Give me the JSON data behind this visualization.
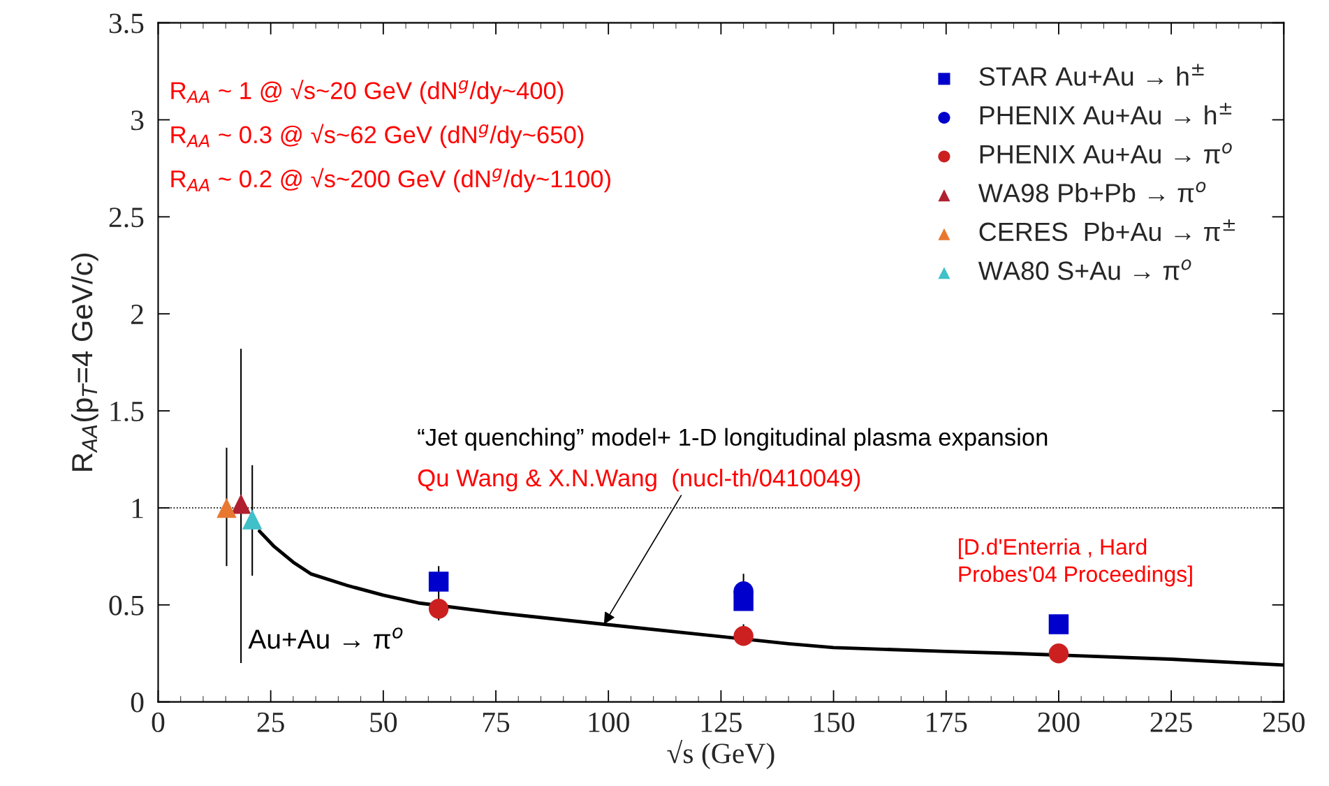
{
  "chart_data": {
    "type": "scatter",
    "xlabel": "√s (GeV)",
    "ylabel": "R$_{AA}$(p$_{T}$=4 GeV/c)",
    "xlim": [
      0,
      250
    ],
    "ylim": [
      0,
      3.5
    ],
    "xticks": [
      0,
      25,
      50,
      75,
      100,
      125,
      150,
      175,
      200,
      225,
      250
    ],
    "yticks": [
      0,
      0.5,
      1,
      1.5,
      2,
      2.5,
      3,
      3.5
    ],
    "grid": false,
    "legend": "top right",
    "series": [
      {
        "name": "STAR Au+Au → h$^{±}$",
        "marker": "square",
        "color": "#0000cc",
        "x": [
          62.3,
          130,
          200
        ],
        "values": [
          0.62,
          0.52,
          0.4
        ],
        "errors": [
          [
            0.55,
            0.7
          ],
          null,
          null
        ]
      },
      {
        "name": "PHENIX Au+Au → h$^{±}$",
        "marker": "circle",
        "color": "#0000cc",
        "x": [
          130
        ],
        "values": [
          0.57
        ],
        "errors": [
          [
            0.57,
            0.66
          ]
        ]
      },
      {
        "name": "PHENIX Au+Au → π$^{o}$",
        "marker": "circle",
        "color": "#cc2020",
        "x": [
          62.3,
          130,
          200
        ],
        "values": [
          0.48,
          0.34,
          0.25
        ],
        "errors": [
          [
            0.42,
            0.55
          ],
          [
            0.29,
            0.4
          ],
          null
        ]
      },
      {
        "name": "WA98 Pb+Pb → π$^{o}$",
        "marker": "triangle",
        "color": "#b02030",
        "x": [
          18.4
        ],
        "values": [
          1.02
        ],
        "errors": [
          [
            0.2,
            1.82
          ]
        ]
      },
      {
        "name": "CERES  Pb+Au → π$^{±}$",
        "marker": "triangle",
        "color": "#e87830",
        "x": [
          15.2
        ],
        "values": [
          1.0
        ],
        "errors": [
          [
            0.7,
            1.31
          ]
        ]
      },
      {
        "name": "WA80 S+Au → π$^{o}$",
        "marker": "triangle",
        "color": "#40c0c8",
        "x": [
          20.9
        ],
        "values": [
          0.94
        ],
        "errors": [
          [
            0.65,
            1.22
          ]
        ]
      },
      {
        "type": "line",
        "color": "#000000",
        "line_style": "solid",
        "marker": "none",
        "x": [
          22.5,
          25.8,
          30,
          33.9,
          42,
          50,
          57.8,
          75,
          99,
          140,
          150,
          175,
          190,
          225,
          250
        ],
        "values": [
          0.88,
          0.8,
          0.72,
          0.66,
          0.6,
          0.55,
          0.51,
          0.46,
          0.4,
          0.3,
          0.28,
          0.26,
          0.25,
          0.22,
          0.19
        ]
      }
    ],
    "ref_lines": [
      {
        "axis": "y",
        "value": 1,
        "line_style": "dotted",
        "color": "#000000"
      }
    ],
    "annotations": [
      "R$_{AA}$ ~ 1 @ √s~20 GeV (dN$^{g}$/dy~400)",
      "R$_{AA}$ ~ 0.3 @ √s~62 GeV (dN$^{g}$/dy~650)",
      "R$_{AA}$ ~ 0.2 @ √s~200 GeV (dN$^{g}$/dy~1100)",
      "“Jet quenching” model+ 1-D longitudinal plasma expansion",
      {
        "text": "Qu Wang & X.N.Wang  (nucl-th/0410049)",
        "x": 99,
        "y": 0.4
      },
      "[D.d'Enterria , Hard\nProbes'04 Proceedings]",
      "Au+Au → π$^{o}$"
    ]
  }
}
